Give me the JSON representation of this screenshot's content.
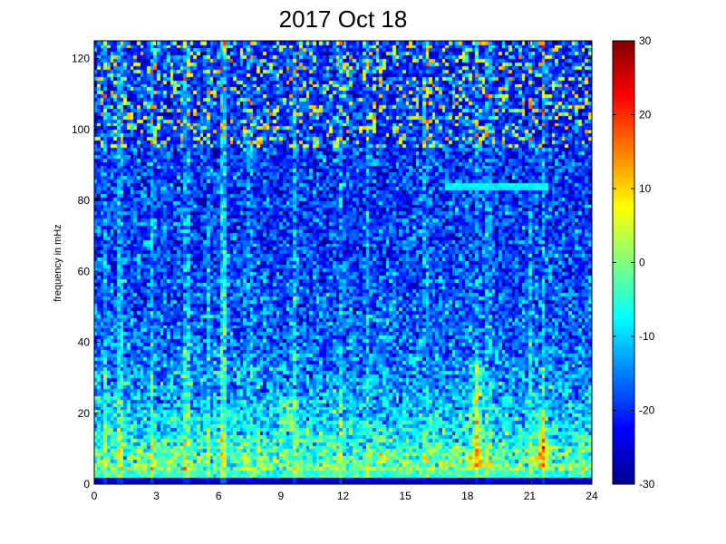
{
  "chart_data": {
    "type": "heatmap",
    "title": "2017 Oct 18",
    "xlabel": "",
    "ylabel": "frequency in mHz",
    "xlim": [
      0,
      24
    ],
    "ylim": [
      0,
      125
    ],
    "xticks": [
      0,
      3,
      6,
      9,
      12,
      15,
      18,
      21,
      24
    ],
    "yticks": [
      0,
      20,
      40,
      60,
      80,
      100,
      120
    ],
    "colorbar": {
      "colormap": "jet",
      "clim": [
        -30,
        30
      ],
      "ticks": [
        -30,
        -20,
        -10,
        0,
        10,
        20,
        30
      ]
    },
    "grid": false,
    "spectral_features": {
      "vertical_streak_hours": [
        0.6,
        1.3,
        2.8,
        4.5,
        5.5,
        6.2,
        7.5,
        9.7,
        11.9,
        13.2,
        16.0,
        18.5,
        19.0,
        21.0,
        21.7
      ],
      "horizontal_line": {
        "freq_mhz": 84,
        "hour_range": [
          17,
          22
        ]
      },
      "high_power_bursts": [
        {
          "hour": 18.5,
          "freq_range_mhz": [
            5,
            35
          ]
        },
        {
          "hour": 21.6,
          "freq_range_mhz": [
            5,
            20
          ]
        },
        {
          "hour": 9.3,
          "freq_range_mhz": [
            15,
            25
          ]
        }
      ]
    }
  }
}
